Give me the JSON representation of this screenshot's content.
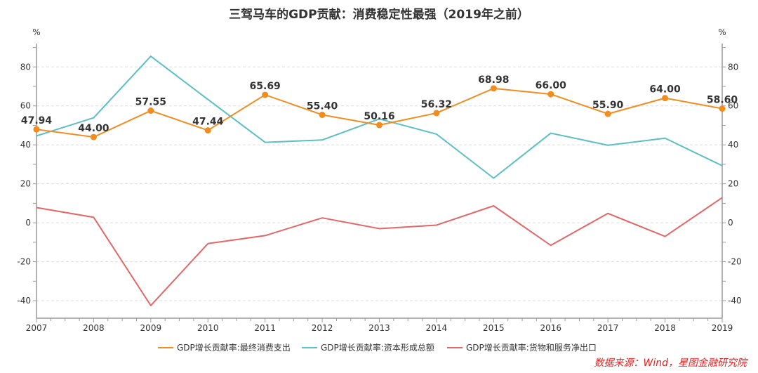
{
  "chart_data": {
    "type": "line",
    "title": "三驾马车的GDP贡献：消费稳定性最强（2019年之前）",
    "xlabel": "",
    "ylabel_left": "%",
    "ylabel_right": "%",
    "x": [
      "2007",
      "2008",
      "2009",
      "2010",
      "2011",
      "2012",
      "2013",
      "2014",
      "2015",
      "2016",
      "2017",
      "2018",
      "2019"
    ],
    "ylim": [
      -49,
      92
    ],
    "yticks": [
      -40,
      -20,
      0,
      20,
      40,
      60,
      80
    ],
    "ytick_labels": [
      "-40",
      "-20",
      "0",
      "20",
      "40",
      "60",
      "80"
    ],
    "grid": true,
    "legend_position": "bottom",
    "series": [
      {
        "name": "GDP增长贡献率:最终消费支出",
        "color": "#f28c1e",
        "markers": true,
        "show_labels": true,
        "values": [
          47.94,
          44.0,
          57.55,
          47.44,
          65.69,
          55.4,
          50.16,
          56.32,
          68.98,
          66.0,
          55.9,
          64.0,
          58.6
        ],
        "labels": [
          "47.94",
          "44.00",
          "57.55",
          "47.44",
          "65.69",
          "55.40",
          "50.16",
          "56.32",
          "68.98",
          "66.00",
          "55.90",
          "64.00",
          "58.60"
        ]
      },
      {
        "name": "GDP增长贡献率:资本形成总额",
        "color": "#5bbfc3",
        "markers": false,
        "show_labels": false,
        "values": [
          44.6,
          53.9,
          85.5,
          63.3,
          41.3,
          42.5,
          53.3,
          45.5,
          22.9,
          46.0,
          39.8,
          43.4,
          29.3
        ]
      },
      {
        "name": "GDP增长贡献率:货物和服务净出口",
        "color": "#e26868",
        "markers": false,
        "show_labels": false,
        "values": [
          7.8,
          2.8,
          -42.5,
          -10.7,
          -6.6,
          2.5,
          -3.0,
          -1.2,
          8.7,
          -11.6,
          4.8,
          -7.0,
          12.9
        ]
      }
    ],
    "annotations": [
      "数据来源：Wind，星图金融研究院"
    ]
  }
}
